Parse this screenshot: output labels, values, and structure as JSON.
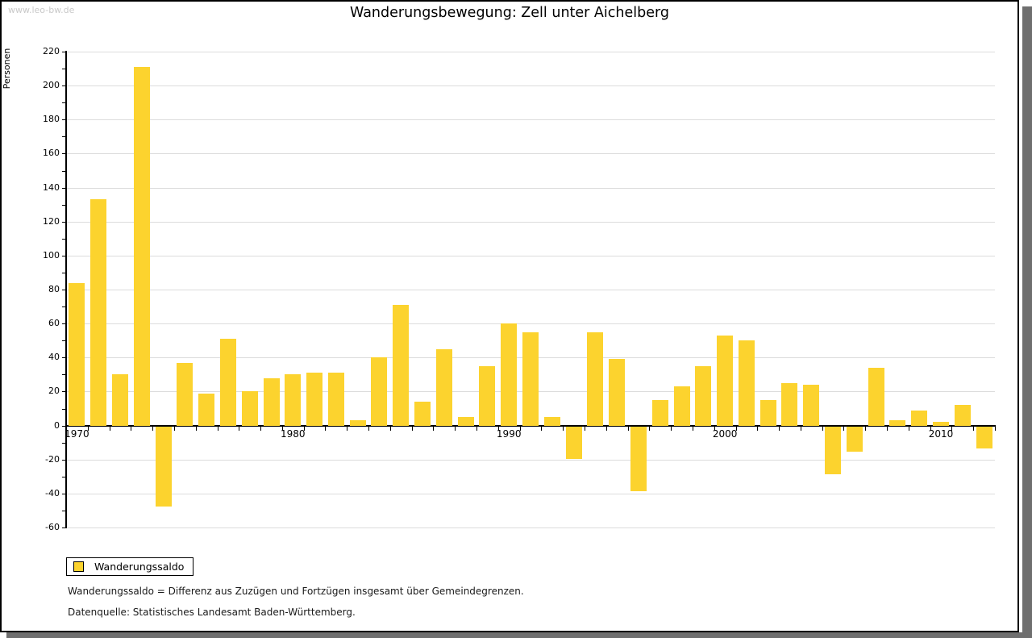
{
  "watermark": "www.leo-bw.de",
  "header": {
    "title": "Wanderungsbewegung: Zell unter Aichelberg"
  },
  "legend": {
    "label": "Wanderungssaldo",
    "swatch_color": "#fcd32e"
  },
  "notes": {
    "definition": "Wanderungssaldo = Differenz aus Zuzügen und Fortzügen insgesamt über Gemeindegrenzen.",
    "source": "Datenquelle: Statistisches Landesamt Baden-Württemberg."
  },
  "colors": {
    "bar": "#fcd32e",
    "gridline": "#dcdcdc",
    "axis": "#000000",
    "shadow": "#6f6f6f",
    "watermark": "#c9c9c9"
  },
  "chart_data": {
    "type": "bar",
    "title": "Wanderungsbewegung: Zell unter Aichelberg",
    "xlabel": "",
    "ylabel": "Personen",
    "ylim": [
      -60,
      220
    ],
    "ytick_step": 20,
    "grid": true,
    "legend_position": "bottom-left",
    "series_name": "Wanderungssaldo",
    "bar_color": "#fcd32e",
    "categories": [
      1970,
      1971,
      1972,
      1973,
      1974,
      1975,
      1976,
      1977,
      1978,
      1979,
      1980,
      1981,
      1982,
      1983,
      1984,
      1985,
      1986,
      1987,
      1988,
      1989,
      1990,
      1991,
      1992,
      1993,
      1994,
      1995,
      1996,
      1997,
      1998,
      1999,
      2000,
      2001,
      2002,
      2003,
      2004,
      2005,
      2006,
      2007,
      2008,
      2009,
      2010,
      2011,
      2012
    ],
    "values": [
      84,
      133,
      30,
      211,
      -47,
      37,
      19,
      51,
      20,
      28,
      30,
      31,
      31,
      3,
      40,
      71,
      14,
      45,
      5,
      35,
      60,
      55,
      5,
      -19,
      55,
      39,
      -38,
      15,
      23,
      35,
      53,
      50,
      15,
      25,
      24,
      -28,
      -15,
      34,
      3,
      9,
      2,
      12,
      -13
    ],
    "x_tick_labels": [
      "1970",
      "1980",
      "1990",
      "2000",
      "2010"
    ],
    "y_tick_labels": [
      "220",
      "200",
      "180",
      "160",
      "140",
      "120",
      "100",
      "80",
      "60",
      "40",
      "20",
      "0",
      "-20",
      "-40",
      "-60"
    ]
  }
}
